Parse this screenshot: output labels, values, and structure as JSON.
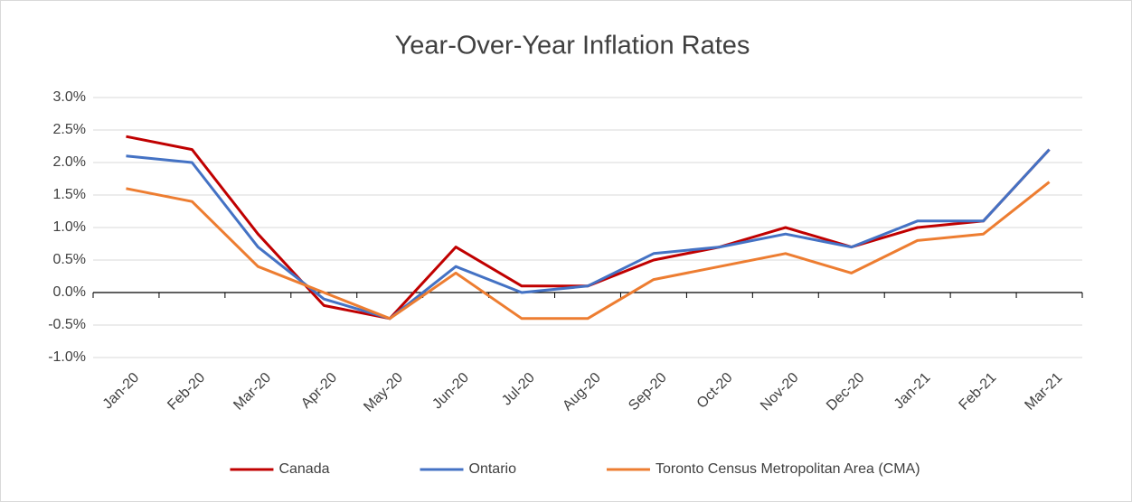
{
  "chart_data": {
    "type": "line",
    "title": "Year-Over-Year Inflation Rates",
    "categories": [
      "Jan-20",
      "Feb-20",
      "Mar-20",
      "Apr-20",
      "May-20",
      "Jun-20",
      "Jul-20",
      "Aug-20",
      "Sep-20",
      "Oct-20",
      "Nov-20",
      "Dec-20",
      "Jan-21",
      "Feb-21",
      "Mar-21"
    ],
    "series": [
      {
        "name": "Canada",
        "color": "#c00000",
        "values": [
          2.4,
          2.2,
          0.9,
          -0.2,
          -0.4,
          0.7,
          0.1,
          0.1,
          0.5,
          0.7,
          1.0,
          0.7,
          1.0,
          1.1,
          2.2
        ]
      },
      {
        "name": "Ontario",
        "color": "#4472c4",
        "values": [
          2.1,
          2.0,
          0.7,
          -0.1,
          -0.4,
          0.4,
          0.0,
          0.1,
          0.6,
          0.7,
          0.9,
          0.7,
          1.1,
          1.1,
          2.2
        ]
      },
      {
        "name": "Toronto Census Metropolitan Area (CMA)",
        "color": "#ed7d31",
        "values": [
          1.6,
          1.4,
          0.4,
          0.0,
          -0.4,
          0.3,
          -0.4,
          -0.4,
          0.2,
          0.4,
          0.6,
          0.3,
          0.8,
          0.9,
          1.7
        ]
      }
    ],
    "ylim": [
      -1,
      3
    ],
    "yticks": [
      {
        "value": -1,
        "label": "-1.0%"
      },
      {
        "value": -0.5,
        "label": "-0.5%"
      },
      {
        "value": 0,
        "label": "0.0%"
      },
      {
        "value": 0.5,
        "label": "0.5%"
      },
      {
        "value": 1,
        "label": "1.0%"
      },
      {
        "value": 1.5,
        "label": "1.5%"
      },
      {
        "value": 2,
        "label": "2.0%"
      },
      {
        "value": 2.5,
        "label": "2.5%"
      },
      {
        "value": 3,
        "label": "3.0%"
      }
    ],
    "grid": true,
    "legend": "bottom"
  }
}
